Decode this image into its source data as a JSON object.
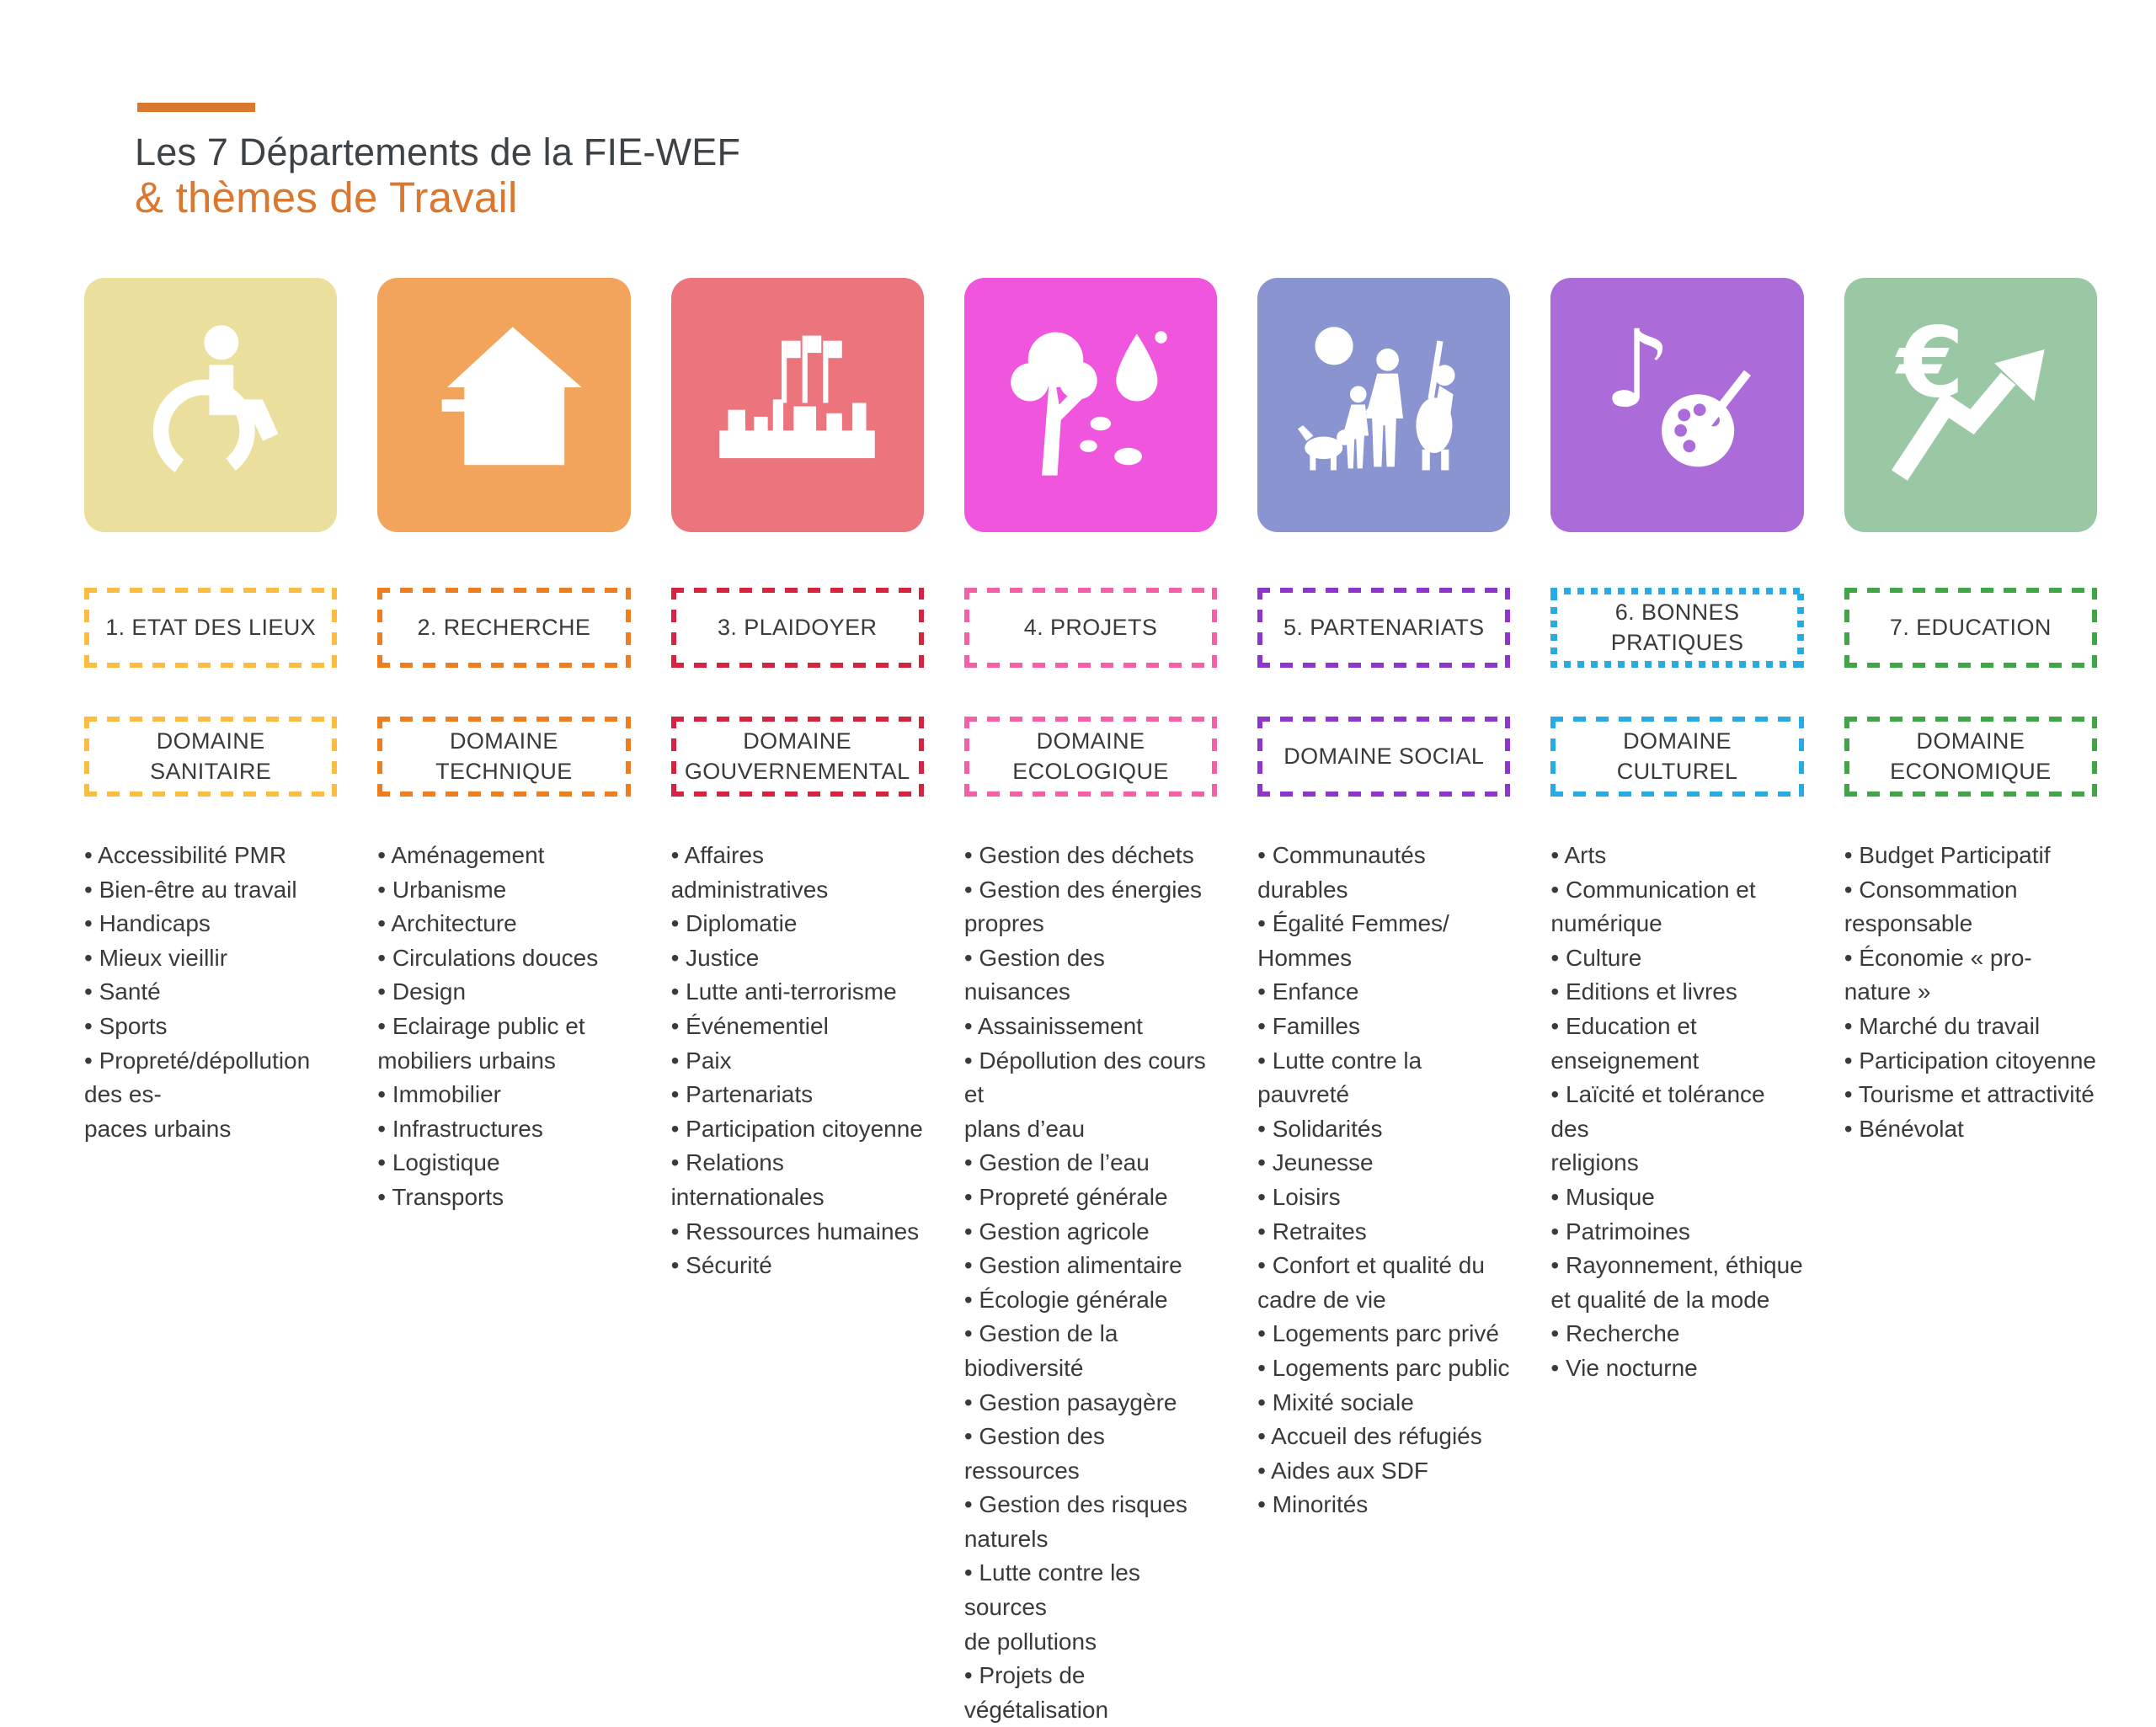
{
  "header": {
    "title_line1": "Les 7 Départements de la FIE-WEF",
    "title_line2": "& thèmes de Travail",
    "accent_color": "#d9782e",
    "title_color": "#3d4246"
  },
  "bullet": "•",
  "columns": [
    {
      "icon": "wheelchair-icon",
      "tile_color": "#ebdf9d",
      "accent_color": "#fbbc40",
      "department_box_style": "dashed",
      "department": "1. ETAT DES LIEUX",
      "domain": "DOMAINE\nSANITAIRE",
      "themes": [
        "Accessibilité PMR",
        "Bien-être au travail",
        "Handicaps",
        "Mieux vieillir",
        "Santé",
        "Sports",
        "Propreté/dépollution\ndes es-\npaces urbains"
      ]
    },
    {
      "icon": "house-icon",
      "tile_color": "#f2a45c",
      "accent_color": "#ee7d1f",
      "department_box_style": "dashed",
      "department": "2. RECHERCHE",
      "domain": "DOMAINE\nTECHNIQUE",
      "themes": [
        "Aménagement",
        "Urbanisme",
        " Architecture",
        "Circulations douces",
        "Design",
        "Eclairage public et\nmobiliers urbains",
        "Immobilier",
        "Infrastructures",
        "Logistique",
        "Transports"
      ]
    },
    {
      "icon": "government-building-icon",
      "tile_color": "#ec747d",
      "accent_color": "#d62440",
      "department_box_style": "dashed",
      "department": "3. PLAIDOYER",
      "domain": "DOMAINE\nGOUVERNEMENTAL",
      "themes": [
        "Affaires administratives",
        "Diplomatie",
        "Justice",
        "Lutte anti-terrorisme",
        "Événementiel",
        "Paix",
        "Partenariats",
        "Participation citoyenne",
        "Relations internationales",
        "Ressources humaines",
        "Sécurité"
      ]
    },
    {
      "icon": "tree-water-icon",
      "tile_color": "#f055dd",
      "accent_color": "#f45fa5",
      "department_box_style": "dashed",
      "department": "4. PROJETS",
      "domain": "DOMAINE\nECOLOGIQUE",
      "themes": [
        "Gestion des déchets",
        "Gestion des énergies\npropres",
        "Gestion des nuisances",
        "Assainissement",
        "Dépollution des cours et\nplans d’eau",
        "Gestion de l’eau",
        "Propreté générale",
        "Gestion agricole",
        "Gestion alimentaire",
        "Écologie générale",
        "Gestion de la\nbiodiversité",
        "Gestion pasaygère",
        "Gestion des ressources",
        "Gestion des risques\nnaturels",
        "Lutte contre les sources\nde pollutions",
        "Projets de végétalisation"
      ]
    },
    {
      "icon": "people-community-icon",
      "tile_color": "#8994d0",
      "accent_color": "#8e35cb",
      "department_box_style": "dashed",
      "department": "5. PARTENARIATS",
      "domain": "DOMAINE SOCIAL",
      "themes": [
        "Communautés durables",
        "Égalité Femmes/\nHommes",
        "Enfance",
        "Familles",
        "Lutte contre la pauvreté",
        "Solidarités",
        "Jeunesse",
        "Loisirs",
        "Retraites",
        "Confort et qualité du\ncadre de vie",
        "Logements parc privé",
        "Logements parc public",
        "Mixité sociale",
        "Accueil des réfugiés",
        "Aides aux SDF",
        "Minorités"
      ]
    },
    {
      "icon": "music-palette-icon",
      "tile_color": "#ab6cd9",
      "accent_color": "#2aaae2",
      "department_box_style": "dotted",
      "department": "6. BONNES PRATIQUES",
      "domain": "DOMAINE\nCULTUREL",
      "themes": [
        "Arts",
        "Communication et\nnumérique",
        "Culture",
        "Editions et livres",
        "Education et\nenseignement",
        "Laïcité et tolérance des\nreligions",
        "Musique",
        "Patrimoines",
        "Rayonnement, éthique\net qualité de la mode",
        "Recherche",
        "Vie nocturne"
      ]
    },
    {
      "icon": "euro-growth-icon",
      "tile_color": "#9bc8a4",
      "accent_color": "#3fa546",
      "department_box_style": "dashed",
      "department": "7. EDUCATION",
      "domain": "DOMAINE\nECONOMIQUE",
      "themes": [
        "Budget Participatif",
        "Consommation\nresponsable",
        "Économie « pro-nature »",
        "Marché du travail",
        "Participation citoyenne",
        "Tourisme et attractivité",
        "Bénévolat"
      ]
    }
  ]
}
